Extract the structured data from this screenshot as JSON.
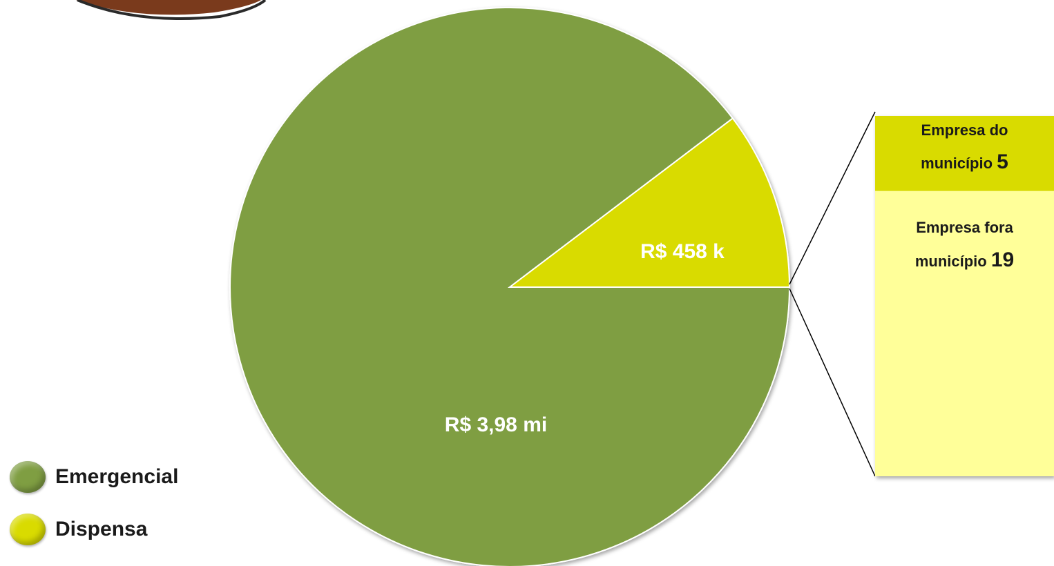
{
  "chart_data": {
    "type": "pie",
    "slices": [
      {
        "label": "Emergencial",
        "value_label": "R$ 3,98 mi",
        "value": 3980000,
        "color": "#7f9e42"
      },
      {
        "label": "Dispensa",
        "value_label": "R$ 458 k",
        "value": 458000,
        "color": "#d9db00"
      }
    ],
    "breakdown": {
      "of": "Dispensa",
      "items": [
        {
          "label_line1": "Empresa do",
          "label_line2": "município",
          "count": 5,
          "color": "#d9db00"
        },
        {
          "label_line1": "Empresa fora",
          "label_line2": "município",
          "count": 19,
          "color": "#ffff99"
        }
      ]
    },
    "legend": [
      {
        "label": "Emergencial",
        "color": "#7f9e42"
      },
      {
        "label": "Dispensa",
        "color": "#d9db00"
      }
    ],
    "legend_position": "bottom-left"
  }
}
